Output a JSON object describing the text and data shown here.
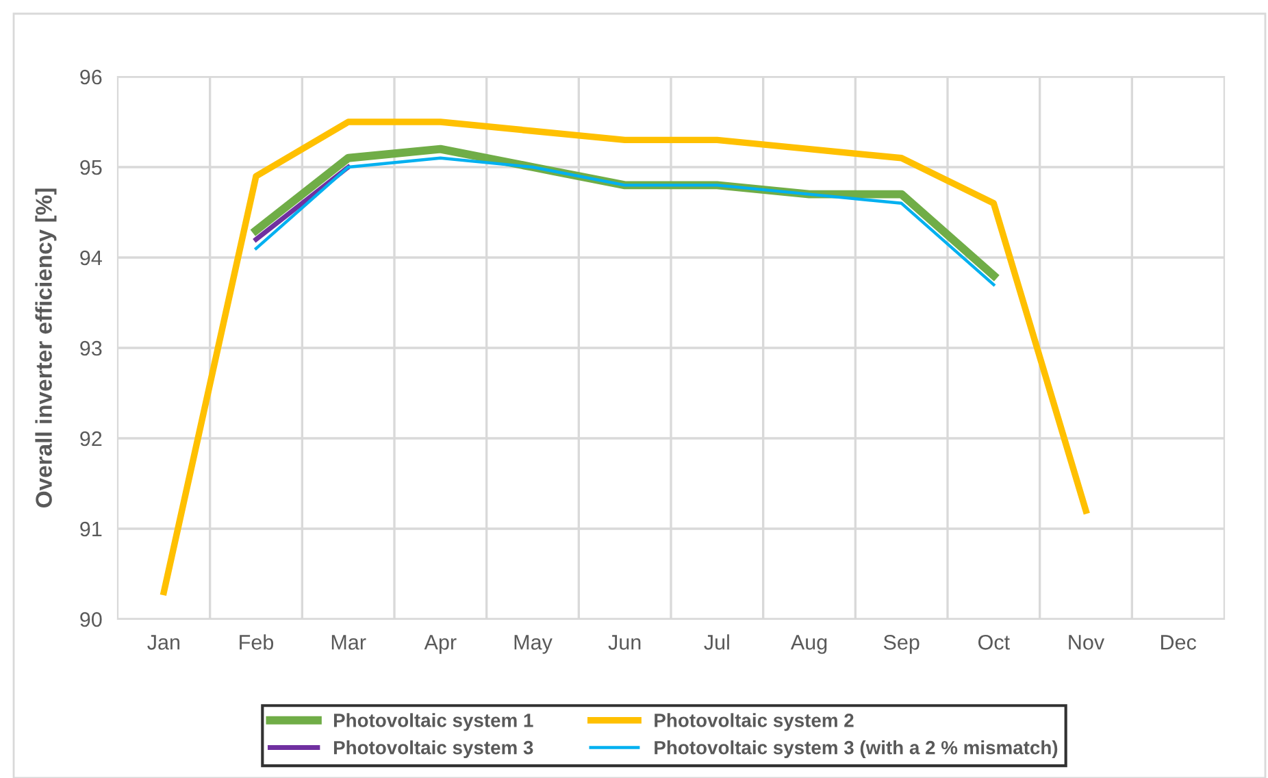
{
  "chart_data": {
    "type": "line",
    "ylabel": "Overall inverter efficiency [%]",
    "categories": [
      "Jan",
      "Feb",
      "Mar",
      "Apr",
      "May",
      "Jun",
      "Jul",
      "Aug",
      "Sep",
      "Oct",
      "Nov",
      "Dec"
    ],
    "series": [
      {
        "name": "Photovoltaic system 1",
        "color": "#70ad47",
        "values": [
          null,
          94.3,
          95.1,
          95.2,
          95.0,
          94.8,
          94.8,
          94.7,
          94.7,
          93.8,
          null,
          null
        ]
      },
      {
        "name": "Photovoltaic system 2",
        "color": "#ffc000",
        "values": [
          90.3,
          94.9,
          95.5,
          95.5,
          95.4,
          95.3,
          95.3,
          95.2,
          95.1,
          94.6,
          91.2,
          null
        ]
      },
      {
        "name": "Photovoltaic system 3",
        "color": "#7030a0",
        "values": [
          null,
          94.2,
          95.0,
          null,
          null,
          null,
          null,
          null,
          null,
          null,
          null,
          null
        ]
      },
      {
        "name": "Photovoltaic system 3 (with a 2 % mismatch)",
        "color": "#00b0f0",
        "values": [
          null,
          94.1,
          95.0,
          95.1,
          95.0,
          94.8,
          94.8,
          94.7,
          94.6,
          93.7,
          null,
          null
        ]
      }
    ],
    "ylim": [
      90,
      96
    ],
    "yticks": [
      90,
      91,
      92,
      93,
      94,
      95,
      96
    ],
    "grid": true,
    "legend": "bottom",
    "marker": "none",
    "line_style": "solid"
  }
}
